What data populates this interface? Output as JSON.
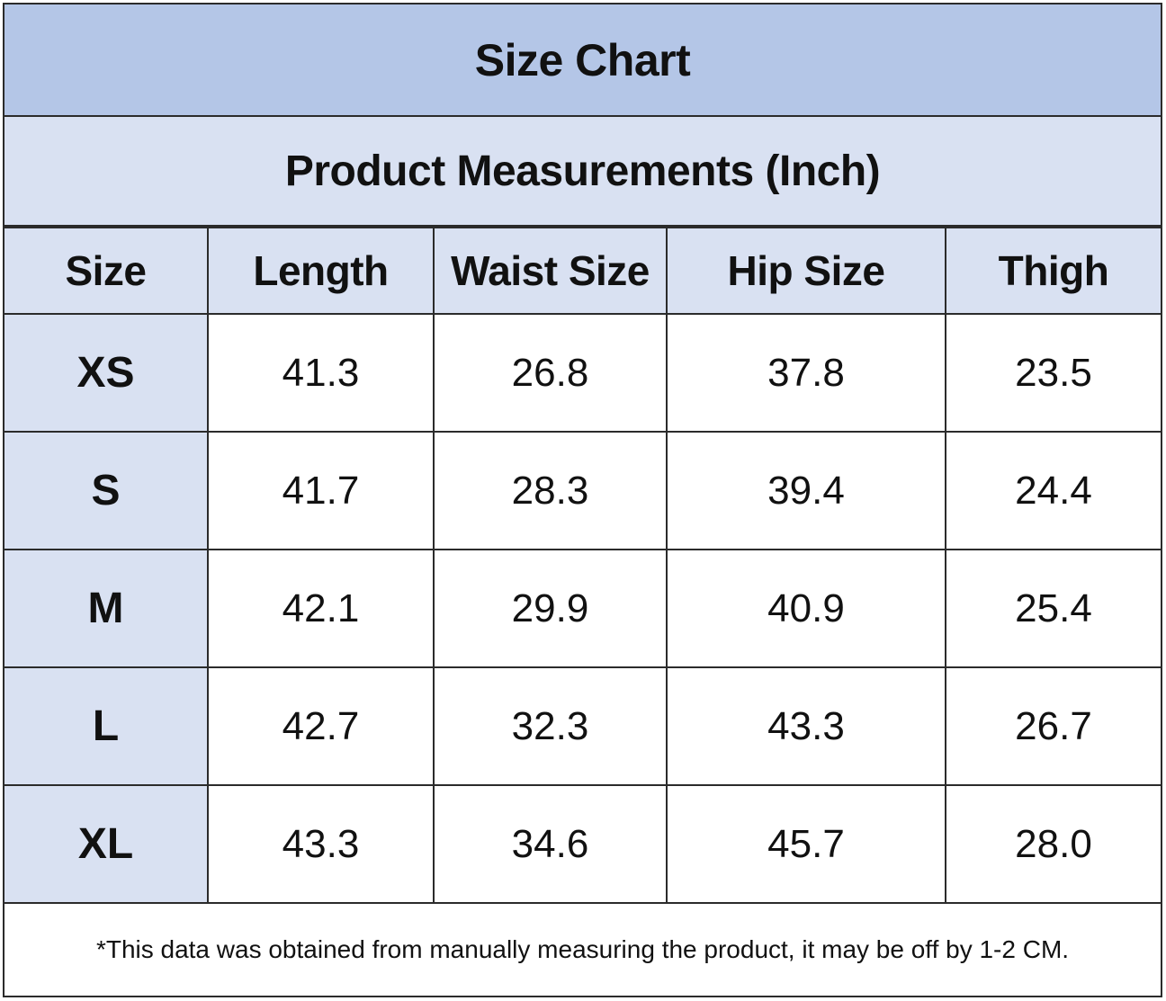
{
  "title": "Size Chart",
  "subtitle": "Product Measurements (Inch)",
  "columns": [
    "Size",
    "Length",
    "Waist Size",
    "Hip Size",
    "Thigh"
  ],
  "rows": [
    {
      "size": "XS",
      "length": "41.3",
      "waist": "26.8",
      "hip": "37.8",
      "thigh": "23.5"
    },
    {
      "size": "S",
      "length": "41.7",
      "waist": "28.3",
      "hip": "39.4",
      "thigh": "24.4"
    },
    {
      "size": "M",
      "length": "42.1",
      "waist": "29.9",
      "hip": "40.9",
      "thigh": "25.4"
    },
    {
      "size": "L",
      "length": "42.7",
      "waist": "32.3",
      "hip": "43.3",
      "thigh": "26.7"
    },
    {
      "size": "XL",
      "length": "43.3",
      "waist": "34.6",
      "hip": "45.7",
      "thigh": "28.0"
    }
  ],
  "footnote": "*This data was obtained from manually measuring the product, it may be off by 1-2 CM.",
  "colors": {
    "title_bg": "#b4c6e7",
    "header_bg": "#d9e1f2",
    "border": "#2b2b2b"
  }
}
